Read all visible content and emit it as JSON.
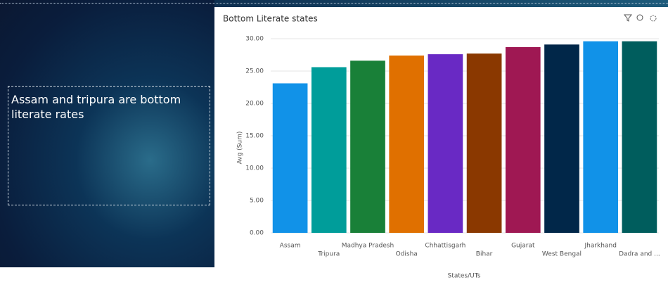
{
  "text_box": {
    "text": "Assam and tripura are bottom literate rates"
  },
  "chart_data": {
    "type": "bar",
    "title": "Bottom Literate states",
    "x_label": "States/UTs",
    "y_label": "Avg (Sum)",
    "categories": [
      "Assam",
      "Tripura",
      "Madhya Pradesh",
      "Odisha",
      "Chhattisgarh",
      "Bihar",
      "Gujarat",
      "West Bengal",
      "Jharkhand",
      "Dadra and ..."
    ],
    "values": [
      23.1,
      25.6,
      26.6,
      27.4,
      27.6,
      27.7,
      28.7,
      29.1,
      29.6,
      29.6
    ],
    "colors": [
      "#1192e8",
      "#009d9a",
      "#198038",
      "#e07000",
      "#6929c4",
      "#8a3800",
      "#9f1853",
      "#012749",
      "#1192e8",
      "#005d5d"
    ],
    "ylim": [
      0,
      30
    ],
    "yticks": [
      {
        "value": 0,
        "label": "0.00"
      },
      {
        "value": 5,
        "label": "5.00"
      },
      {
        "value": 10,
        "label": "10.00"
      },
      {
        "value": 15,
        "label": "15.00"
      },
      {
        "value": 20,
        "label": "20.00"
      },
      {
        "value": 25,
        "label": "25.00"
      },
      {
        "value": 30,
        "label": "30.00"
      }
    ],
    "grid": true
  }
}
